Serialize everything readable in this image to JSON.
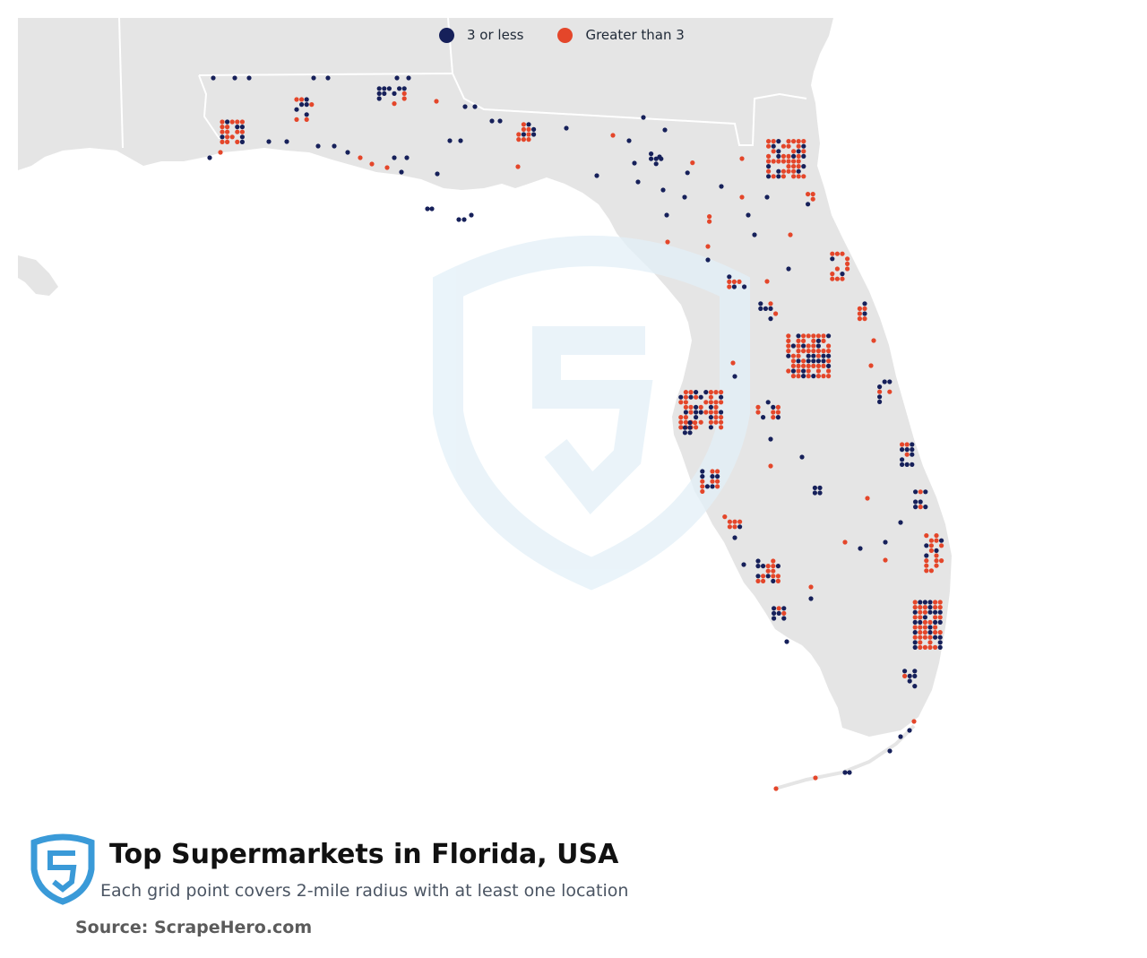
{
  "legend": {
    "items": [
      {
        "label": "3 or less",
        "color": "#16205a"
      },
      {
        "label": "Greater than 3",
        "color": "#e4462a"
      }
    ]
  },
  "footer": {
    "title": "Top Supermarkets in Florida, USA",
    "subtitle": "Each grid point covers 2-mile radius with at least one location",
    "source": "Source: ScrapeHero.com",
    "logo_icon": "scrapehero-shield-logo-icon"
  },
  "colors": {
    "land": "#e5e5e5",
    "water": "#ffffff",
    "borders": "#ffffff",
    "watermark": "#e3f0f8",
    "logo": "#3a9ad8"
  }
}
